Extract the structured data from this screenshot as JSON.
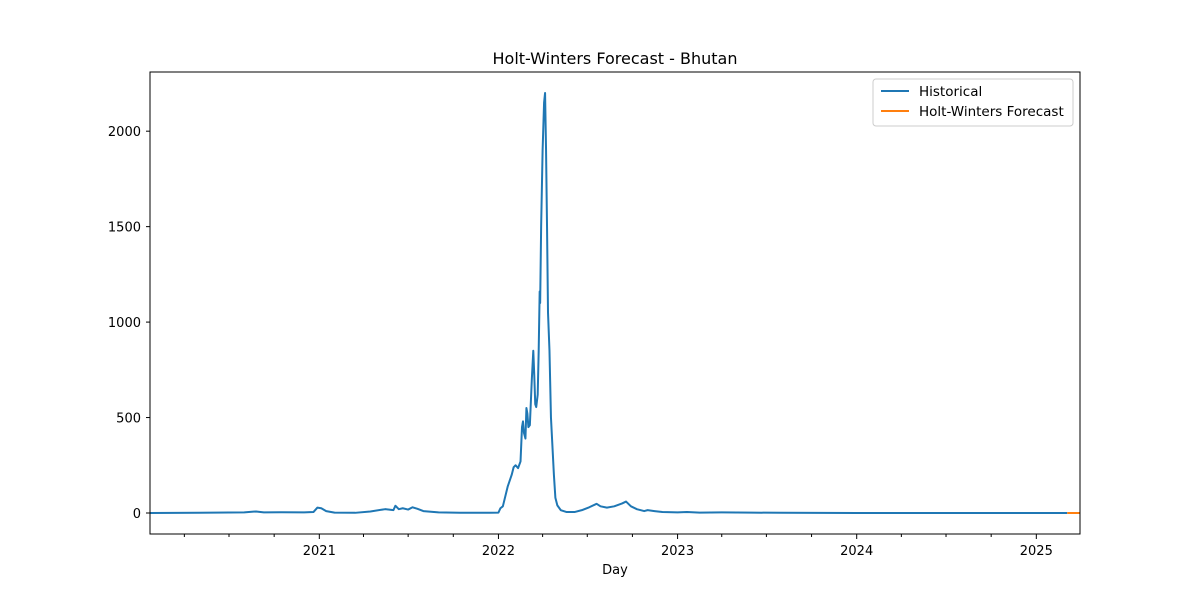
{
  "chart_data": {
    "type": "line",
    "title": "Holt-Winters Forecast - Bhutan",
    "xlabel": "Day",
    "ylabel": "",
    "x_axis_type": "date",
    "xlim": [
      "2020-01-22",
      "2025-03-31"
    ],
    "ylim": [
      -110,
      2310
    ],
    "y_ticks": [
      0,
      500,
      1000,
      1500,
      2000
    ],
    "x_ticks": [
      {
        "date": "2021-01-01",
        "label": "2021"
      },
      {
        "date": "2022-01-01",
        "label": "2022"
      },
      {
        "date": "2023-01-01",
        "label": "2023"
      },
      {
        "date": "2024-01-01",
        "label": "2024"
      },
      {
        "date": "2025-01-01",
        "label": "2025"
      }
    ],
    "grid": false,
    "legend_position": "top-right",
    "series": [
      {
        "name": "Historical",
        "color": "#1f77b4",
        "points": [
          [
            "2020-01-22",
            0
          ],
          [
            "2020-05-01",
            1
          ],
          [
            "2020-08-01",
            3
          ],
          [
            "2020-08-25",
            8
          ],
          [
            "2020-09-10",
            3
          ],
          [
            "2020-10-15",
            4
          ],
          [
            "2020-12-01",
            3
          ],
          [
            "2020-12-20",
            5
          ],
          [
            "2020-12-28",
            28
          ],
          [
            "2021-01-05",
            25
          ],
          [
            "2021-01-15",
            10
          ],
          [
            "2021-02-01",
            2
          ],
          [
            "2021-03-15",
            1
          ],
          [
            "2021-04-15",
            8
          ],
          [
            "2021-05-15",
            20
          ],
          [
            "2021-06-01",
            15
          ],
          [
            "2021-06-05",
            38
          ],
          [
            "2021-06-12",
            20
          ],
          [
            "2021-06-20",
            25
          ],
          [
            "2021-07-01",
            18
          ],
          [
            "2021-07-10",
            30
          ],
          [
            "2021-07-20",
            22
          ],
          [
            "2021-08-01",
            10
          ],
          [
            "2021-09-01",
            3
          ],
          [
            "2021-10-15",
            1
          ],
          [
            "2021-12-15",
            1
          ],
          [
            "2022-01-01",
            2
          ],
          [
            "2022-01-05",
            25
          ],
          [
            "2022-01-10",
            35
          ],
          [
            "2022-01-20",
            140
          ],
          [
            "2022-01-28",
            200
          ],
          [
            "2022-02-01",
            240
          ],
          [
            "2022-02-05",
            250
          ],
          [
            "2022-02-10",
            235
          ],
          [
            "2022-02-15",
            270
          ],
          [
            "2022-02-18",
            450
          ],
          [
            "2022-02-20",
            480
          ],
          [
            "2022-02-22",
            420
          ],
          [
            "2022-02-25",
            390
          ],
          [
            "2022-02-27",
            550
          ],
          [
            "2022-03-01",
            520
          ],
          [
            "2022-03-03",
            450
          ],
          [
            "2022-03-06",
            460
          ],
          [
            "2022-03-10",
            700
          ],
          [
            "2022-03-13",
            850
          ],
          [
            "2022-03-15",
            720
          ],
          [
            "2022-03-17",
            570
          ],
          [
            "2022-03-19",
            555
          ],
          [
            "2022-03-22",
            620
          ],
          [
            "2022-03-24",
            850
          ],
          [
            "2022-03-26",
            1160
          ],
          [
            "2022-03-27",
            1100
          ],
          [
            "2022-03-29",
            1500
          ],
          [
            "2022-04-01",
            1900
          ],
          [
            "2022-04-04",
            2150
          ],
          [
            "2022-04-06",
            2200
          ],
          [
            "2022-04-08",
            1900
          ],
          [
            "2022-04-10",
            1500
          ],
          [
            "2022-04-12",
            1050
          ],
          [
            "2022-04-15",
            850
          ],
          [
            "2022-04-18",
            500
          ],
          [
            "2022-04-21",
            350
          ],
          [
            "2022-04-24",
            200
          ],
          [
            "2022-04-27",
            80
          ],
          [
            "2022-05-01",
            40
          ],
          [
            "2022-05-08",
            15
          ],
          [
            "2022-05-20",
            5
          ],
          [
            "2022-06-05",
            5
          ],
          [
            "2022-06-20",
            15
          ],
          [
            "2022-07-05",
            30
          ],
          [
            "2022-07-20",
            48
          ],
          [
            "2022-07-28",
            35
          ],
          [
            "2022-08-10",
            28
          ],
          [
            "2022-08-25",
            35
          ],
          [
            "2022-09-10",
            50
          ],
          [
            "2022-09-18",
            60
          ],
          [
            "2022-09-28",
            35
          ],
          [
            "2022-10-10",
            20
          ],
          [
            "2022-10-25",
            10
          ],
          [
            "2022-11-01",
            15
          ],
          [
            "2022-11-15",
            10
          ],
          [
            "2022-12-01",
            5
          ],
          [
            "2023-01-01",
            3
          ],
          [
            "2023-01-20",
            5
          ],
          [
            "2023-02-15",
            2
          ],
          [
            "2023-04-01",
            3
          ],
          [
            "2023-06-01",
            2
          ],
          [
            "2023-08-01",
            1
          ],
          [
            "2024-01-01",
            0
          ],
          [
            "2025-03-05",
            0
          ]
        ]
      },
      {
        "name": "Holt-Winters Forecast",
        "color": "#ff7f0e",
        "points": [
          [
            "2025-03-05",
            0
          ],
          [
            "2025-03-31",
            0
          ]
        ]
      }
    ]
  }
}
